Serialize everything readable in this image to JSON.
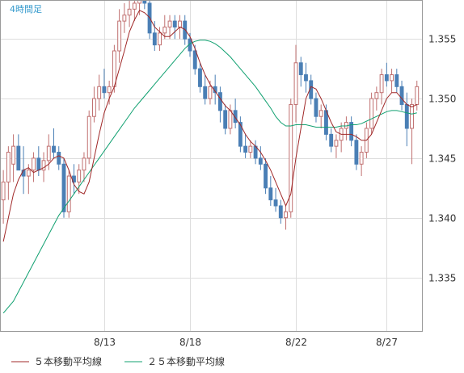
{
  "chart_data": {
    "type": "candlestick",
    "title": "4時間足",
    "x_tick_labels": [
      "8/13",
      "8/18",
      "8/22",
      "8/27"
    ],
    "y_tick_labels": [
      "1.335",
      "1.340",
      "1.345",
      "1.350",
      "1.355"
    ],
    "y_ticks": [
      1.335,
      1.34,
      1.345,
      1.35,
      1.355
    ],
    "ylim": [
      1.3305,
      1.3582
    ],
    "grid": true,
    "legend_position": "bottom-left",
    "colors": {
      "up": "#c07070",
      "down": "#4a7fb5",
      "ma5": "#a02828",
      "ma25": "#10a070",
      "grid": "#dddddd",
      "axis": "#9a9a9a",
      "title": "#3399cc"
    },
    "candles": [
      [
        1.3395,
        1.344,
        1.3415,
        1.343
      ],
      [
        1.3415,
        1.346,
        1.343,
        1.3455
      ],
      [
        1.343,
        1.347,
        1.3445,
        1.346
      ],
      [
        1.3445,
        1.347,
        1.346,
        1.344
      ],
      [
        1.342,
        1.346,
        1.344,
        1.3435
      ],
      [
        1.342,
        1.3445,
        1.3435,
        1.344
      ],
      [
        1.343,
        1.3455,
        1.344,
        1.345
      ],
      [
        1.3435,
        1.346,
        1.345,
        1.344
      ],
      [
        1.343,
        1.3455,
        1.344,
        1.3448
      ],
      [
        1.344,
        1.347,
        1.3448,
        1.346
      ],
      [
        1.345,
        1.3475,
        1.346,
        1.3455
      ],
      [
        1.344,
        1.346,
        1.3455,
        1.3445
      ],
      [
        1.34,
        1.345,
        1.3445,
        1.3405
      ],
      [
        1.34,
        1.344,
        1.3405,
        1.3435
      ],
      [
        1.342,
        1.3445,
        1.3435,
        1.343
      ],
      [
        1.342,
        1.3445,
        1.343,
        1.344
      ],
      [
        1.343,
        1.3455,
        1.344,
        1.345
      ],
      [
        1.3445,
        1.349,
        1.345,
        1.3485
      ],
      [
        1.348,
        1.351,
        1.3485,
        1.35
      ],
      [
        1.349,
        1.352,
        1.35,
        1.351
      ],
      [
        1.35,
        1.3525,
        1.351,
        1.3505
      ],
      [
        1.3495,
        1.3515,
        1.3505,
        1.351
      ],
      [
        1.3505,
        1.3545,
        1.351,
        1.354
      ],
      [
        1.353,
        1.3575,
        1.354,
        1.3565
      ],
      [
        1.3555,
        1.358,
        1.3565,
        1.357
      ],
      [
        1.356,
        1.3585,
        1.357,
        1.3575
      ],
      [
        1.3565,
        1.359,
        1.3575,
        1.358
      ],
      [
        1.357,
        1.359,
        1.358,
        1.3585
      ],
      [
        1.3575,
        1.359,
        1.3585,
        1.358
      ],
      [
        1.355,
        1.3585,
        1.358,
        1.3555
      ],
      [
        1.354,
        1.3565,
        1.3555,
        1.3545
      ],
      [
        1.354,
        1.356,
        1.3545,
        1.3555
      ],
      [
        1.355,
        1.357,
        1.3555,
        1.356
      ],
      [
        1.355,
        1.357,
        1.356,
        1.3565
      ],
      [
        1.355,
        1.357,
        1.3565,
        1.356
      ],
      [
        1.355,
        1.357,
        1.356,
        1.3565
      ],
      [
        1.3545,
        1.357,
        1.3565,
        1.355
      ],
      [
        1.3535,
        1.3555,
        1.355,
        1.354
      ],
      [
        1.352,
        1.3545,
        1.354,
        1.3525
      ],
      [
        1.3505,
        1.353,
        1.3525,
        1.351
      ],
      [
        1.3495,
        1.352,
        1.351,
        1.35
      ],
      [
        1.3495,
        1.3515,
        1.35,
        1.351
      ],
      [
        1.3495,
        1.352,
        1.351,
        1.3505
      ],
      [
        1.348,
        1.351,
        1.3505,
        1.349
      ],
      [
        1.347,
        1.3495,
        1.349,
        1.3475
      ],
      [
        1.347,
        1.3495,
        1.3475,
        1.349
      ],
      [
        1.3475,
        1.35,
        1.349,
        1.348
      ],
      [
        1.3455,
        1.3485,
        1.348,
        1.346
      ],
      [
        1.345,
        1.347,
        1.346,
        1.3455
      ],
      [
        1.345,
        1.3465,
        1.3455,
        1.346
      ],
      [
        1.3445,
        1.3465,
        1.346,
        1.345
      ],
      [
        1.344,
        1.346,
        1.345,
        1.3445
      ],
      [
        1.342,
        1.345,
        1.3445,
        1.3425
      ],
      [
        1.341,
        1.3435,
        1.3425,
        1.3415
      ],
      [
        1.3405,
        1.3425,
        1.3415,
        1.341
      ],
      [
        1.3395,
        1.3415,
        1.341,
        1.34
      ],
      [
        1.339,
        1.341,
        1.34,
        1.3405
      ],
      [
        1.34,
        1.35,
        1.3405,
        1.3495
      ],
      [
        1.348,
        1.3545,
        1.3495,
        1.353
      ],
      [
        1.351,
        1.3535,
        1.353,
        1.352
      ],
      [
        1.3505,
        1.353,
        1.352,
        1.3515
      ],
      [
        1.3495,
        1.352,
        1.3515,
        1.35
      ],
      [
        1.348,
        1.3505,
        1.35,
        1.3485
      ],
      [
        1.3475,
        1.3495,
        1.3485,
        1.349
      ],
      [
        1.3465,
        1.3495,
        1.349,
        1.347
      ],
      [
        1.3455,
        1.3475,
        1.347,
        1.346
      ],
      [
        1.345,
        1.347,
        1.346,
        1.3465
      ],
      [
        1.3455,
        1.348,
        1.3465,
        1.3475
      ],
      [
        1.3465,
        1.3485,
        1.3475,
        1.348
      ],
      [
        1.346,
        1.3485,
        1.348,
        1.3465
      ],
      [
        1.344,
        1.347,
        1.3465,
        1.3445
      ],
      [
        1.3435,
        1.346,
        1.3445,
        1.3455
      ],
      [
        1.345,
        1.348,
        1.3455,
        1.3475
      ],
      [
        1.347,
        1.3505,
        1.3475,
        1.35
      ],
      [
        1.349,
        1.351,
        1.35,
        1.3505
      ],
      [
        1.3495,
        1.3525,
        1.3505,
        1.352
      ],
      [
        1.351,
        1.353,
        1.352,
        1.3515
      ],
      [
        1.3505,
        1.3525,
        1.3515,
        1.352
      ],
      [
        1.3505,
        1.3525,
        1.352,
        1.351
      ],
      [
        1.349,
        1.3515,
        1.351,
        1.3495
      ],
      [
        1.346,
        1.3505,
        1.3495,
        1.3475
      ],
      [
        1.3445,
        1.35,
        1.3475,
        1.3495
      ],
      [
        1.349,
        1.3515,
        1.3495,
        1.351
      ]
    ],
    "ma5": [
      1.338,
      1.34,
      1.342,
      1.3432,
      1.344,
      1.3442,
      1.3438,
      1.344,
      1.3442,
      1.3445,
      1.345,
      1.3452,
      1.345,
      1.344,
      1.3428,
      1.3422,
      1.342,
      1.343,
      1.345,
      1.347,
      1.3488,
      1.35,
      1.351,
      1.3525,
      1.354,
      1.3556,
      1.3566,
      1.3574,
      1.3572,
      1.3568,
      1.356,
      1.3556,
      1.3552,
      1.3552,
      1.3556,
      1.356,
      1.3558,
      1.3552,
      1.3542,
      1.353,
      1.352,
      1.3512,
      1.3506,
      1.35,
      1.3494,
      1.349,
      1.3484,
      1.3478,
      1.347,
      1.3464,
      1.346,
      1.3455,
      1.3448,
      1.344,
      1.343,
      1.342,
      1.341,
      1.342,
      1.345,
      1.3475,
      1.35,
      1.351,
      1.3508,
      1.35,
      1.349,
      1.348,
      1.3472,
      1.347,
      1.347,
      1.347,
      1.3468,
      1.3465,
      1.3465,
      1.347,
      1.348,
      1.349,
      1.35,
      1.3505,
      1.3505,
      1.35,
      1.3495,
      1.3493,
      1.3495
    ],
    "ma25": [
      1.332,
      1.3325,
      1.333,
      1.3338,
      1.3346,
      1.3354,
      1.3362,
      1.337,
      1.3378,
      1.3386,
      1.3394,
      1.3402,
      1.3408,
      1.3414,
      1.342,
      1.3426,
      1.3432,
      1.3438,
      1.3444,
      1.345,
      1.3456,
      1.3462,
      1.3468,
      1.3474,
      1.348,
      1.3486,
      1.3492,
      1.3497,
      1.3502,
      1.3507,
      1.3512,
      1.3517,
      1.3522,
      1.3527,
      1.3532,
      1.3537,
      1.3542,
      1.3546,
      1.3548,
      1.3549,
      1.3549,
      1.3548,
      1.3546,
      1.3543,
      1.3539,
      1.3535,
      1.353,
      1.3525,
      1.352,
      1.3515,
      1.351,
      1.3504,
      1.3498,
      1.3492,
      1.3485,
      1.348,
      1.3477,
      1.3477,
      1.3478,
      1.3478,
      1.3478,
      1.3477,
      1.3476,
      1.3476,
      1.3476,
      1.3476,
      1.3476,
      1.3477,
      1.3477,
      1.3478,
      1.3478,
      1.3479,
      1.3481,
      1.3483,
      1.3485,
      1.3487,
      1.3489,
      1.349,
      1.349,
      1.3489,
      1.3488,
      1.3487,
      1.3488
    ],
    "x_tick_index": [
      20,
      37,
      58,
      76
    ]
  },
  "legend": {
    "ma5_label": "５本移動平均線",
    "ma25_label": "２５本移動平均線"
  }
}
